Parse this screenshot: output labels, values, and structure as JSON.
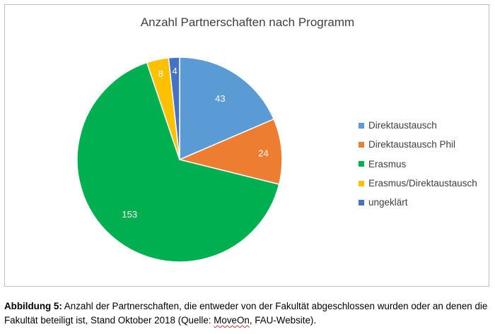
{
  "chart_data": {
    "type": "pie",
    "title": "Anzahl Partnerschaften nach Programm",
    "categories": [
      "Direktaustausch",
      "Direktaustausch Phil",
      "Erasmus",
      "Erasmus/Direktaustausch",
      "ungeklärt"
    ],
    "values": [
      43,
      24,
      153,
      8,
      4
    ],
    "colors": [
      "#5b9bd5",
      "#ed7d31",
      "#00b050",
      "#ffc000",
      "#4472c4"
    ],
    "label_color": "#ffffff",
    "legend_position": "right",
    "start_angle": "top",
    "direction": "clockwise"
  },
  "caption": {
    "label": "Abbildung 5:",
    "text_before": " Anzahl der Partnerschaften, die entweder von der Fakultät abgeschlossen wurden oder an denen die Fakultät beteiligt ist, Stand Oktober 2018 (Quelle: ",
    "source_highlight": "MoveOn",
    "text_after": ", FAU-Website)."
  }
}
